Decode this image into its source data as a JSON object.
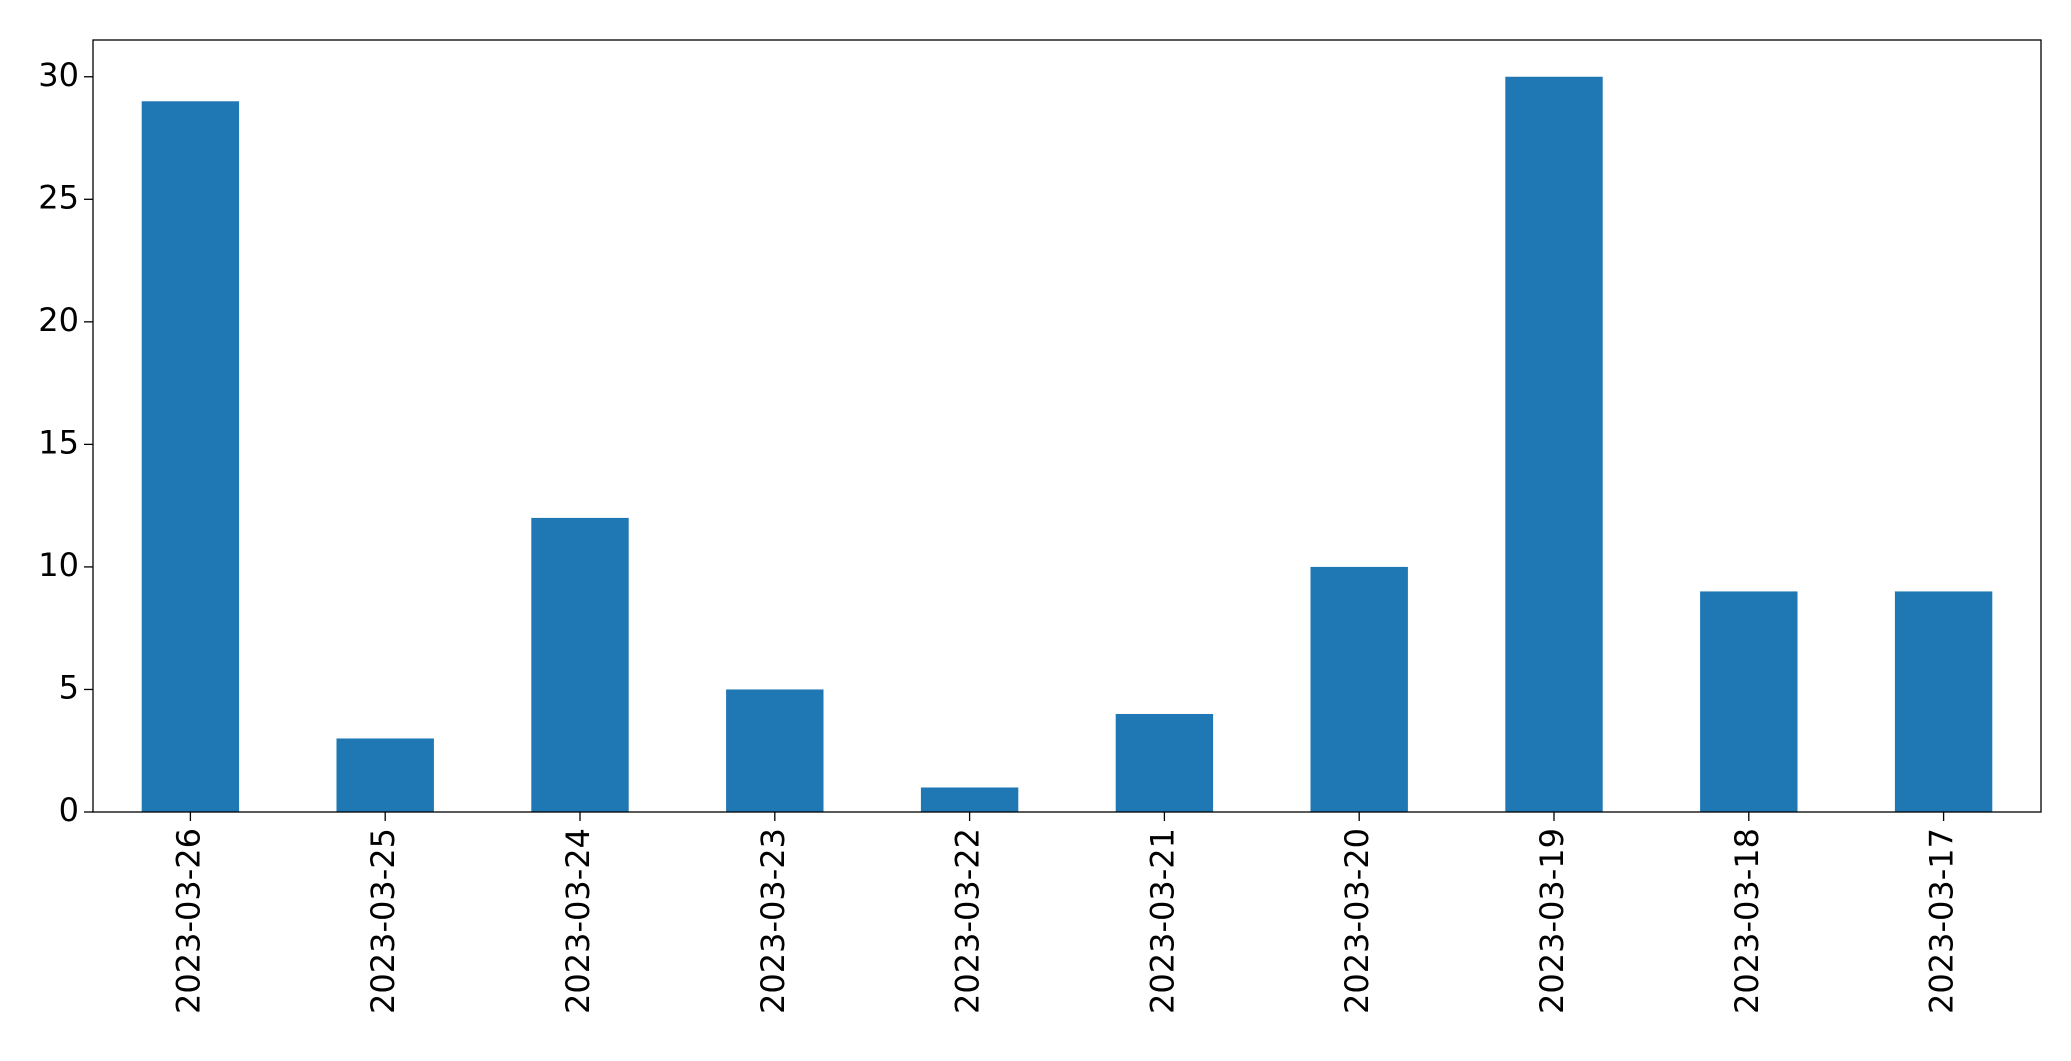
{
  "chart_data": {
    "type": "bar",
    "categories": [
      "2023-03-26",
      "2023-03-25",
      "2023-03-24",
      "2023-03-23",
      "2023-03-22",
      "2023-03-21",
      "2023-03-20",
      "2023-03-19",
      "2023-03-18",
      "2023-03-17"
    ],
    "values": [
      29,
      3,
      12,
      5,
      1,
      4,
      10,
      30,
      9,
      9
    ],
    "color": "#1f77b4",
    "ylim": [
      0,
      31.5
    ],
    "yticks": [
      0,
      5,
      10,
      15,
      20,
      25,
      30
    ],
    "grid": false
  }
}
